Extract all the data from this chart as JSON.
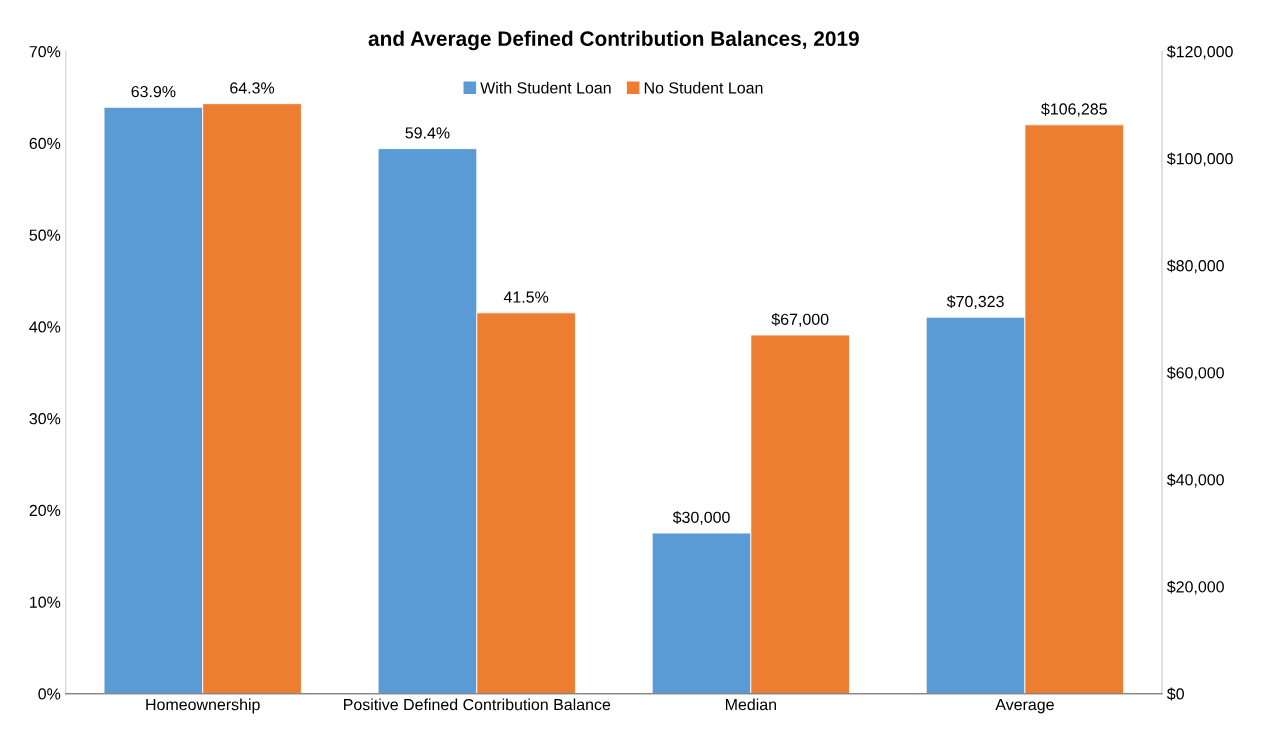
{
  "chart_data": {
    "type": "bar",
    "title": "and Average Defined Contribution Balances, 2019",
    "categories": [
      "Homeownership",
      "Positive Defined Contribution Balance",
      "Median",
      "Average"
    ],
    "series": [
      {
        "name": "With Student Loan",
        "color": "#5b9bd5",
        "values": [
          63.9,
          59.4,
          null,
          null
        ],
        "value_labels": [
          "63.9%",
          "59.4%",
          null,
          null
        ]
      },
      {
        "name": "No Student Loan",
        "color": "#ed7d31",
        "values": [
          64.3,
          41.5,
          null,
          null
        ],
        "value_labels": [
          "64.3%",
          "41.5%",
          null,
          null
        ]
      },
      {
        "color": "#5b9bd5",
        "axis": "y2",
        "values": [
          null,
          null,
          30000,
          70323
        ],
        "value_labels": [
          null,
          null,
          "$30,000",
          "$70,323"
        ]
      },
      {
        "color": "#ed7d31",
        "axis": "y2",
        "values": [
          null,
          null,
          67000,
          106285
        ],
        "value_labels": [
          null,
          null,
          "$67,000",
          "$106,285"
        ]
      }
    ],
    "ylim": [
      0,
      70
    ],
    "yticks": [
      {
        "value": 0,
        "label": "0%"
      },
      {
        "value": 10,
        "label": "10%"
      },
      {
        "value": 20,
        "label": "20%"
      },
      {
        "value": 30,
        "label": "30%"
      },
      {
        "value": 40,
        "label": "40%"
      },
      {
        "value": 50,
        "label": "50%"
      },
      {
        "value": 60,
        "label": "60%"
      },
      {
        "value": 70,
        "label": "70%"
      }
    ],
    "y2lim": [
      0,
      120000
    ],
    "y2ticks": [
      {
        "value": 0,
        "label": "$0"
      },
      {
        "value": 20000,
        "label": "$20,000"
      },
      {
        "value": 40000,
        "label": "$40,000"
      },
      {
        "value": 60000,
        "label": "$60,000"
      },
      {
        "value": 80000,
        "label": "$80,000"
      },
      {
        "value": 100000,
        "label": "$100,000"
      },
      {
        "value": 120000,
        "label": "$120,000"
      }
    ],
    "grid": false,
    "legend": "top"
  }
}
